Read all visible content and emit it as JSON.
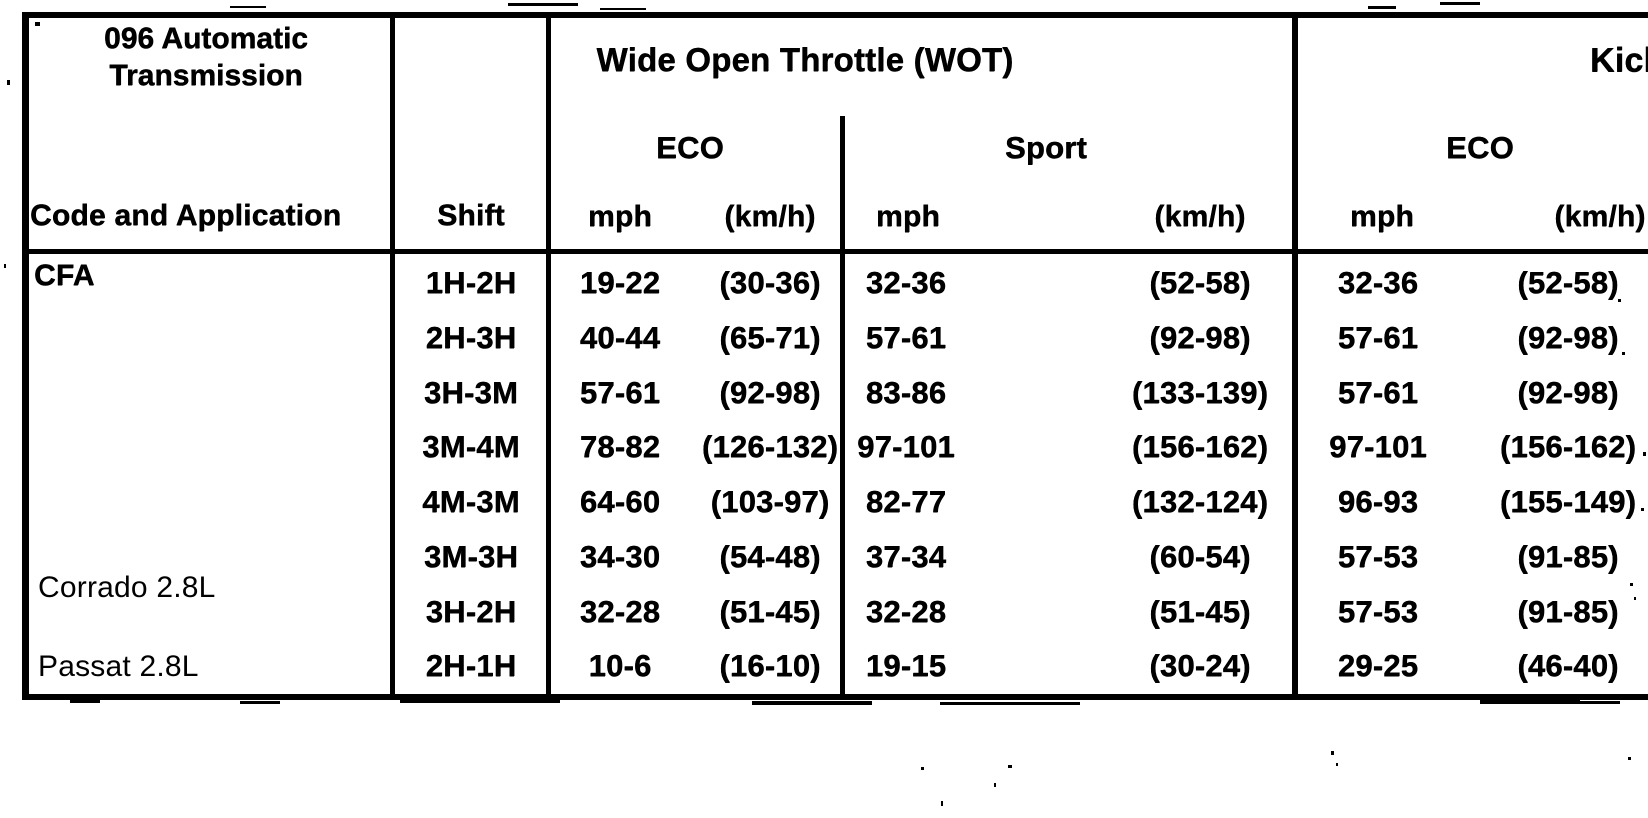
{
  "document": {
    "kind": "scanned transmission shift-point table",
    "ink_color": "#000000",
    "paper_color": "#ffffff"
  },
  "table": {
    "headers": {
      "app_line1": "096 Automatic",
      "app_line2": "Transmission",
      "app_bottom": "Code and Application",
      "shift": "Shift",
      "wot_title": "Wide Open Throttle (WOT)",
      "wot_eco": "ECO",
      "wot_sport": "Sport",
      "kickdown_title": "Kickdown",
      "kickdown_eco": "ECO",
      "mph": "mph",
      "kmh": "(km/h)"
    },
    "applications": [
      {
        "label": "CFA",
        "emphasis": "bold"
      },
      {
        "label": "Corrado 2.8L",
        "emphasis": "normal"
      },
      {
        "label": "Passat 2.8L",
        "emphasis": "normal"
      }
    ],
    "rows": [
      {
        "shift": "1H-2H",
        "wot_eco_mph": "19-22",
        "wot_eco_kmh": "(30-36)",
        "wot_sport_mph": "32-36",
        "wot_sport_kmh": "(52-58)",
        "kd_eco_mph": "32-36",
        "kd_eco_kmh": "(52-58)"
      },
      {
        "shift": "2H-3H",
        "wot_eco_mph": "40-44",
        "wot_eco_kmh": "(65-71)",
        "wot_sport_mph": "57-61",
        "wot_sport_kmh": "(92-98)",
        "kd_eco_mph": "57-61",
        "kd_eco_kmh": "(92-98)"
      },
      {
        "shift": "3H-3M",
        "wot_eco_mph": "57-61",
        "wot_eco_kmh": "(92-98)",
        "wot_sport_mph": "83-86",
        "wot_sport_kmh": "(133-139)",
        "kd_eco_mph": "57-61",
        "kd_eco_kmh": "(92-98)"
      },
      {
        "shift": "3M-4M",
        "wot_eco_mph": "78-82",
        "wot_eco_kmh": "(126-132)",
        "wot_sport_mph": "97-101",
        "wot_sport_kmh": "(156-162)",
        "kd_eco_mph": "97-101",
        "kd_eco_kmh": "(156-162)"
      },
      {
        "shift": "4M-3M",
        "wot_eco_mph": "64-60",
        "wot_eco_kmh": "(103-97)",
        "wot_sport_mph": "82-77",
        "wot_sport_kmh": "(132-124)",
        "kd_eco_mph": "96-93",
        "kd_eco_kmh": "(155-149)"
      },
      {
        "shift": "3M-3H",
        "wot_eco_mph": "34-30",
        "wot_eco_kmh": "(54-48)",
        "wot_sport_mph": "37-34",
        "wot_sport_kmh": "(60-54)",
        "kd_eco_mph": "57-53",
        "kd_eco_kmh": "(91-85)"
      },
      {
        "shift": "3H-2H",
        "wot_eco_mph": "32-28",
        "wot_eco_kmh": "(51-45)",
        "wot_sport_mph": "32-28",
        "wot_sport_kmh": "(51-45)",
        "kd_eco_mph": "57-53",
        "kd_eco_kmh": "(91-85)"
      },
      {
        "shift": "2H-1H",
        "wot_eco_mph": "10-6",
        "wot_eco_kmh": "(16-10)",
        "wot_sport_mph": "19-15",
        "wot_sport_kmh": "(30-24)",
        "kd_eco_mph": "29-25",
        "kd_eco_kmh": "(46-40)"
      }
    ]
  }
}
